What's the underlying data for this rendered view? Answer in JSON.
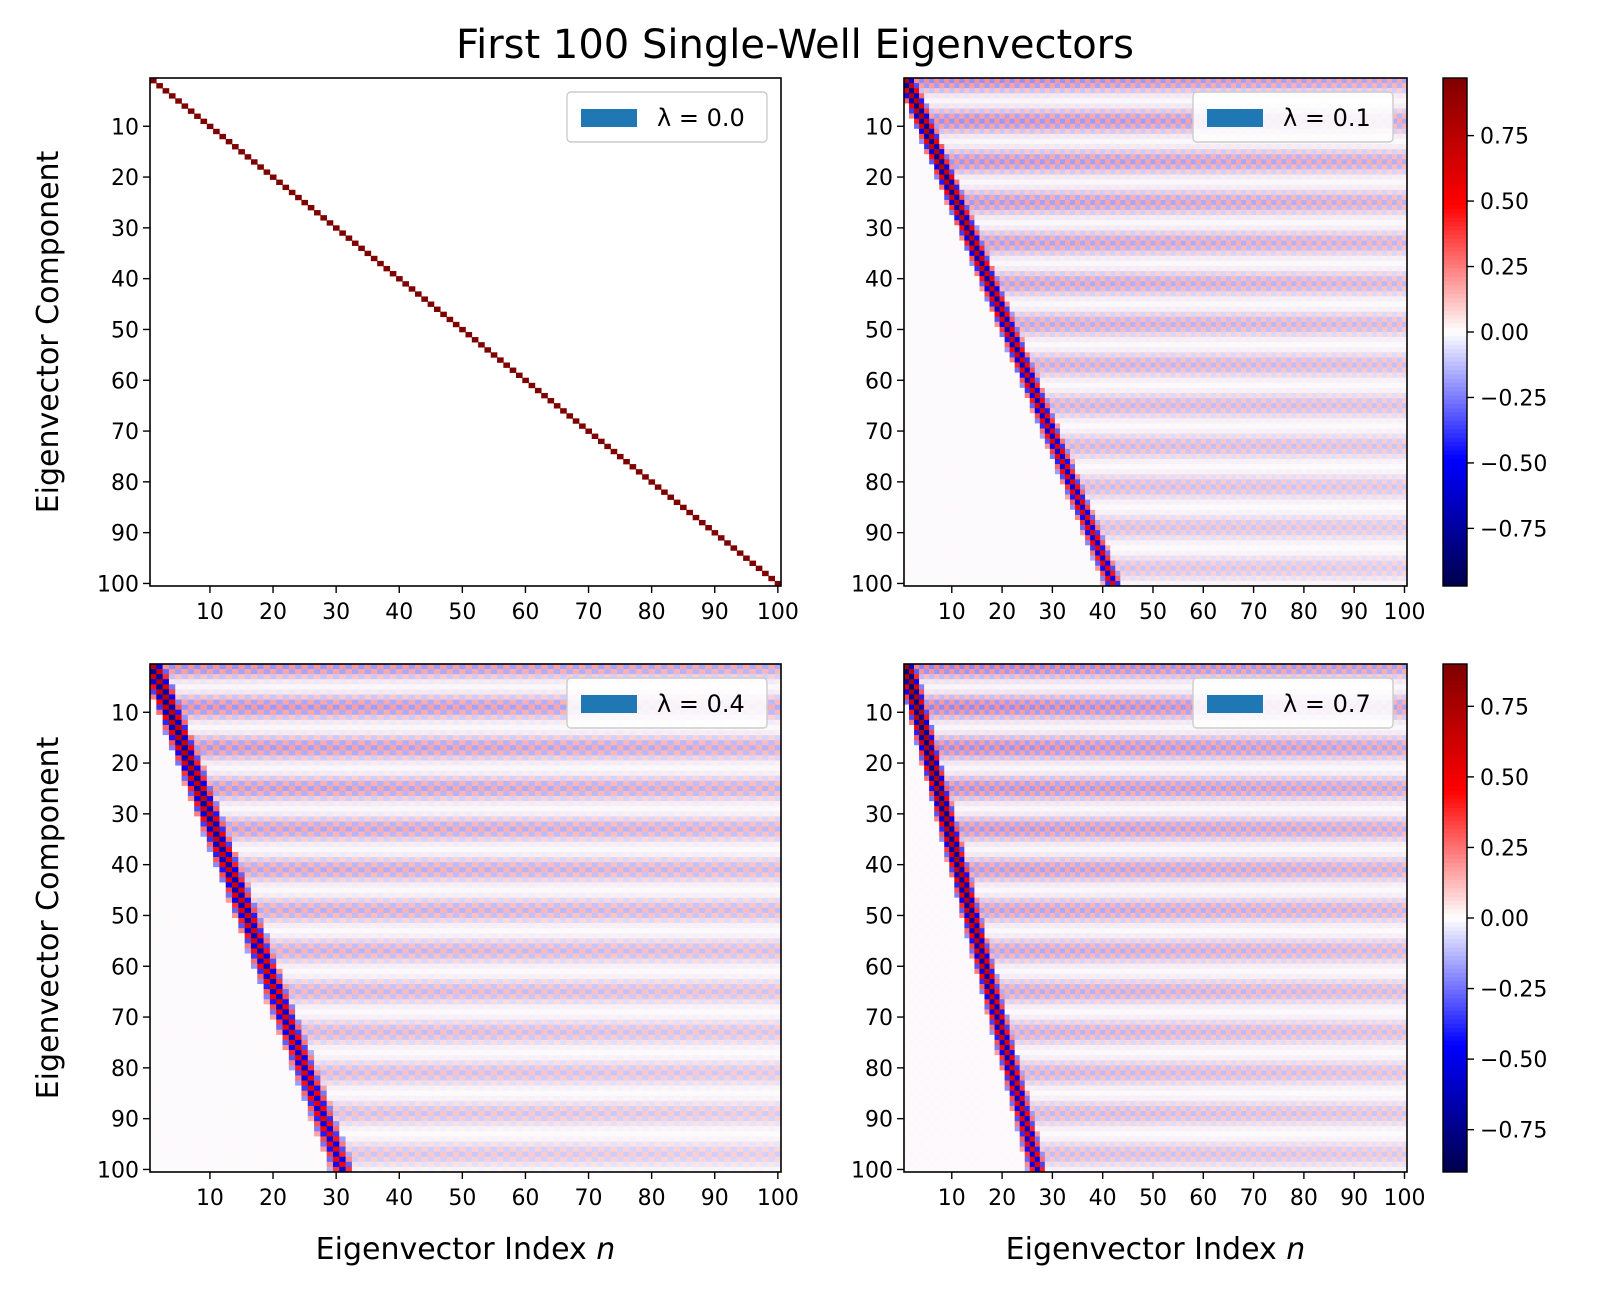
{
  "chart_data": {
    "type": "heatmap",
    "title": "First 100 Single-Well Eigenvectors",
    "colormap": "seismic",
    "colormap_colors": [
      "#00004c",
      "#0000ff",
      "#ffffff",
      "#ff0000",
      "#7f0000"
    ],
    "legend_patch_color": "#1f77b4",
    "matrix_size": 100,
    "x_ticks": [
      10,
      20,
      30,
      40,
      50,
      60,
      70,
      80,
      90,
      100
    ],
    "y_ticks": [
      10,
      20,
      30,
      40,
      50,
      60,
      70,
      80,
      90,
      100
    ],
    "panels": [
      {
        "legend_label": "λ = 0.0",
        "lambda": 0.0,
        "xlabel": "",
        "ylabel": "Eigenvector Component",
        "xlim": [
          1,
          100
        ],
        "ylim": [
          100,
          1
        ],
        "band_start_x": 1,
        "band_end_x": 100,
        "peak_amplitude": 1.0,
        "background_amplitude": 0.0,
        "colorbar": false
      },
      {
        "legend_label": "λ = 0.1",
        "lambda": 0.1,
        "xlabel": "",
        "ylabel": "",
        "xlim": [
          1,
          100
        ],
        "ylim": [
          100,
          1
        ],
        "band_start_x": 1,
        "band_end_x": 42,
        "peak_amplitude": 0.8,
        "background_amplitude": 0.2,
        "colorbar": true,
        "colorbar_range": [
          -0.97,
          0.97
        ],
        "colorbar_ticks": [
          0.75,
          0.5,
          0.25,
          0.0,
          -0.25,
          -0.5,
          -0.75
        ],
        "colorbar_tick_labels": [
          "0.75",
          "0.50",
          "0.25",
          "0.00",
          "−0.25",
          "−0.50",
          "−0.75"
        ]
      },
      {
        "legend_label": "λ = 0.4",
        "lambda": 0.4,
        "xlabel": "Eigenvector Index n",
        "ylabel": "Eigenvector Component",
        "xlim": [
          1,
          100
        ],
        "ylim": [
          100,
          1
        ],
        "band_start_x": 1,
        "band_end_x": 31,
        "peak_amplitude": 0.8,
        "background_amplitude": 0.2,
        "colorbar": false
      },
      {
        "legend_label": "λ = 0.7",
        "lambda": 0.7,
        "xlabel": "Eigenvector Index n",
        "ylabel": "",
        "xlim": [
          1,
          100
        ],
        "ylim": [
          100,
          1
        ],
        "band_start_x": 1,
        "band_end_x": 27,
        "peak_amplitude": 0.8,
        "background_amplitude": 0.2,
        "colorbar": true,
        "colorbar_range": [
          -0.9,
          0.9
        ],
        "colorbar_ticks": [
          0.75,
          0.5,
          0.25,
          0.0,
          -0.25,
          -0.5,
          -0.75
        ],
        "colorbar_tick_labels": [
          "0.75",
          "0.50",
          "0.25",
          "0.00",
          "−0.25",
          "−0.50",
          "−0.75"
        ]
      }
    ]
  }
}
